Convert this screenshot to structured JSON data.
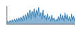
{
  "chart_data": {
    "type": "area",
    "values": [
      3,
      5,
      2,
      6,
      3,
      7,
      3,
      8,
      4,
      9,
      4,
      10,
      5,
      11,
      5,
      13,
      6,
      15,
      7,
      18,
      10,
      22,
      8,
      20,
      12,
      24,
      10,
      22,
      14,
      26,
      12,
      18,
      8,
      22,
      10,
      14,
      6,
      16,
      8,
      12,
      5,
      14,
      6,
      10,
      4,
      8,
      5,
      12,
      6,
      16,
      7,
      14,
      5,
      18,
      8,
      15,
      6,
      12,
      5,
      16,
      7,
      13,
      5
    ],
    "color": "#3a82b8",
    "xlim": [
      0,
      62
    ],
    "ylim": [
      0,
      28.08
    ],
    "tick_labels": false
  }
}
